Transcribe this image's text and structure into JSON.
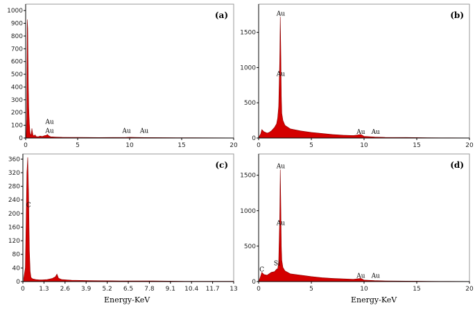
{
  "colors": {
    "spectrum": "#d40000",
    "axis": "#000000",
    "frame": "#9a9a9a"
  },
  "chart_data": [
    {
      "type": "area",
      "tag": "(a)",
      "xlabel": "",
      "xlim": [
        0,
        20
      ],
      "ylim": [
        0,
        1050
      ],
      "xticks": [
        0,
        5,
        10,
        15,
        20
      ],
      "xtick_labels": [
        "0",
        "5",
        "10",
        "15",
        "20"
      ],
      "yticks": [
        0,
        100,
        200,
        300,
        400,
        500,
        600,
        700,
        800,
        900,
        1000
      ],
      "ytick_labels": [
        "0",
        "100",
        "200",
        "300",
        "400",
        "500",
        "600",
        "700",
        "800",
        "900",
        "1000"
      ],
      "spectrum": {
        "x": [
          0.05,
          0.1,
          0.15,
          0.2,
          0.25,
          0.3,
          0.35,
          0.4,
          0.45,
          0.5,
          0.55,
          0.6,
          0.65,
          0.7,
          0.8,
          0.9,
          1.0,
          1.2,
          1.4,
          1.6,
          1.8,
          2.0,
          2.1,
          2.2,
          2.4,
          2.8,
          3.5,
          5,
          7,
          9.7,
          10,
          11.4,
          13,
          16,
          20
        ],
        "y": [
          20,
          150,
          930,
          860,
          420,
          230,
          120,
          60,
          30,
          20,
          40,
          75,
          45,
          25,
          15,
          25,
          12,
          10,
          15,
          12,
          18,
          22,
          28,
          18,
          10,
          8,
          6,
          5,
          4,
          5,
          6,
          4,
          3,
          2,
          1
        ]
      },
      "annotations": [
        {
          "text": "Au",
          "x": 2.3,
          "y": 100
        },
        {
          "text": "Au",
          "x": 2.3,
          "y": 30
        },
        {
          "text": "Au",
          "x": 9.7,
          "y": 30
        },
        {
          "text": "Au",
          "x": 11.4,
          "y": 30
        }
      ]
    },
    {
      "type": "area",
      "tag": "(b)",
      "xlabel": "",
      "xlim": [
        0,
        20
      ],
      "ylim": [
        0,
        1900
      ],
      "xticks": [
        0,
        5,
        10,
        15,
        20
      ],
      "xtick_labels": [
        "0",
        "5",
        "10",
        "15",
        "20"
      ],
      "yticks": [
        0,
        500,
        1000,
        1500
      ],
      "ytick_labels": [
        "0",
        "500",
        "1000",
        "1500"
      ],
      "spectrum": {
        "x": [
          0.05,
          0.2,
          0.3,
          0.5,
          0.8,
          1.0,
          1.2,
          1.5,
          1.7,
          1.8,
          1.9,
          2.0,
          2.05,
          2.1,
          2.15,
          2.2,
          2.3,
          2.5,
          3.0,
          4.0,
          5,
          6,
          7,
          8,
          9,
          9.7,
          10,
          11,
          12,
          14,
          16,
          18,
          20
        ],
        "y": [
          20,
          60,
          120,
          90,
          70,
          80,
          100,
          150,
          200,
          280,
          450,
          1100,
          1720,
          1300,
          600,
          350,
          250,
          180,
          130,
          100,
          80,
          65,
          50,
          40,
          35,
          50,
          25,
          15,
          10,
          8,
          5,
          3,
          2
        ]
      },
      "annotations": [
        {
          "text": "Au",
          "x": 2.1,
          "y": 1720
        },
        {
          "text": "Au",
          "x": 2.1,
          "y": 860
        },
        {
          "text": "Au",
          "x": 9.7,
          "y": 40
        },
        {
          "text": "Au",
          "x": 11.1,
          "y": 40
        }
      ]
    },
    {
      "type": "area",
      "tag": "(c)",
      "xlabel": "Energy-KeV",
      "xlim": [
        0,
        13
      ],
      "ylim": [
        0,
        375
      ],
      "xticks": [
        0,
        1.3,
        2.6,
        3.9,
        5.2,
        6.5,
        7.8,
        9.1,
        10.4,
        11.7,
        13
      ],
      "xtick_labels": [
        "0",
        "1.3",
        "2.6",
        "3.9",
        "5.2",
        "6.5",
        "7.8",
        "9.1",
        "10.4",
        "11.7",
        "13"
      ],
      "yticks": [
        0,
        40,
        80,
        120,
        160,
        200,
        240,
        280,
        320,
        360
      ],
      "ytick_labels": [
        "0",
        "40",
        "80",
        "120",
        "160",
        "200",
        "240",
        "280",
        "320",
        "360"
      ],
      "spectrum": {
        "x": [
          0.05,
          0.15,
          0.2,
          0.25,
          0.3,
          0.35,
          0.4,
          0.45,
          0.5,
          0.6,
          0.8,
          1.0,
          1.2,
          1.5,
          1.8,
          2.0,
          2.1,
          2.2,
          2.4,
          3.0,
          4.0,
          6.0,
          8.0,
          10.0,
          13.0
        ],
        "y": [
          10,
          40,
          180,
          320,
          365,
          260,
          90,
          30,
          12,
          8,
          6,
          5,
          5,
          6,
          9,
          14,
          22,
          10,
          6,
          4,
          3,
          2,
          2,
          1,
          1
        ]
      },
      "annotations": [
        {
          "text": "C",
          "x": 0.35,
          "y": 215
        }
      ]
    },
    {
      "type": "area",
      "tag": "(d)",
      "xlabel": "Energy-KeV",
      "xlim": [
        0,
        20
      ],
      "ylim": [
        0,
        1800
      ],
      "xticks": [
        0,
        5,
        10,
        15,
        20
      ],
      "xtick_labels": [
        "0",
        "5",
        "10",
        "15",
        "20"
      ],
      "yticks": [
        0,
        500,
        1000,
        1500
      ],
      "ytick_labels": [
        "0",
        "500",
        "1000",
        "1500"
      ],
      "spectrum": {
        "x": [
          0.05,
          0.2,
          0.3,
          0.5,
          0.8,
          1.0,
          1.2,
          1.5,
          1.74,
          1.8,
          1.9,
          2.0,
          2.05,
          2.1,
          2.15,
          2.2,
          2.3,
          2.5,
          3.0,
          4.0,
          5,
          6,
          7,
          8,
          9,
          9.7,
          10,
          11,
          12,
          14,
          16,
          18,
          20
        ],
        "y": [
          20,
          80,
          130,
          100,
          90,
          110,
          130,
          140,
          180,
          170,
          280,
          900,
          1580,
          1150,
          500,
          300,
          200,
          150,
          110,
          90,
          70,
          55,
          45,
          38,
          32,
          45,
          22,
          14,
          10,
          7,
          5,
          3,
          2
        ]
      },
      "annotations": [
        {
          "text": "Au",
          "x": 2.1,
          "y": 1580
        },
        {
          "text": "Au",
          "x": 2.1,
          "y": 780
        },
        {
          "text": "C",
          "x": 0.3,
          "y": 120
        },
        {
          "text": "Si",
          "x": 1.74,
          "y": 210
        },
        {
          "text": "Au",
          "x": 9.7,
          "y": 35
        },
        {
          "text": "Au",
          "x": 11.1,
          "y": 35
        }
      ]
    }
  ]
}
